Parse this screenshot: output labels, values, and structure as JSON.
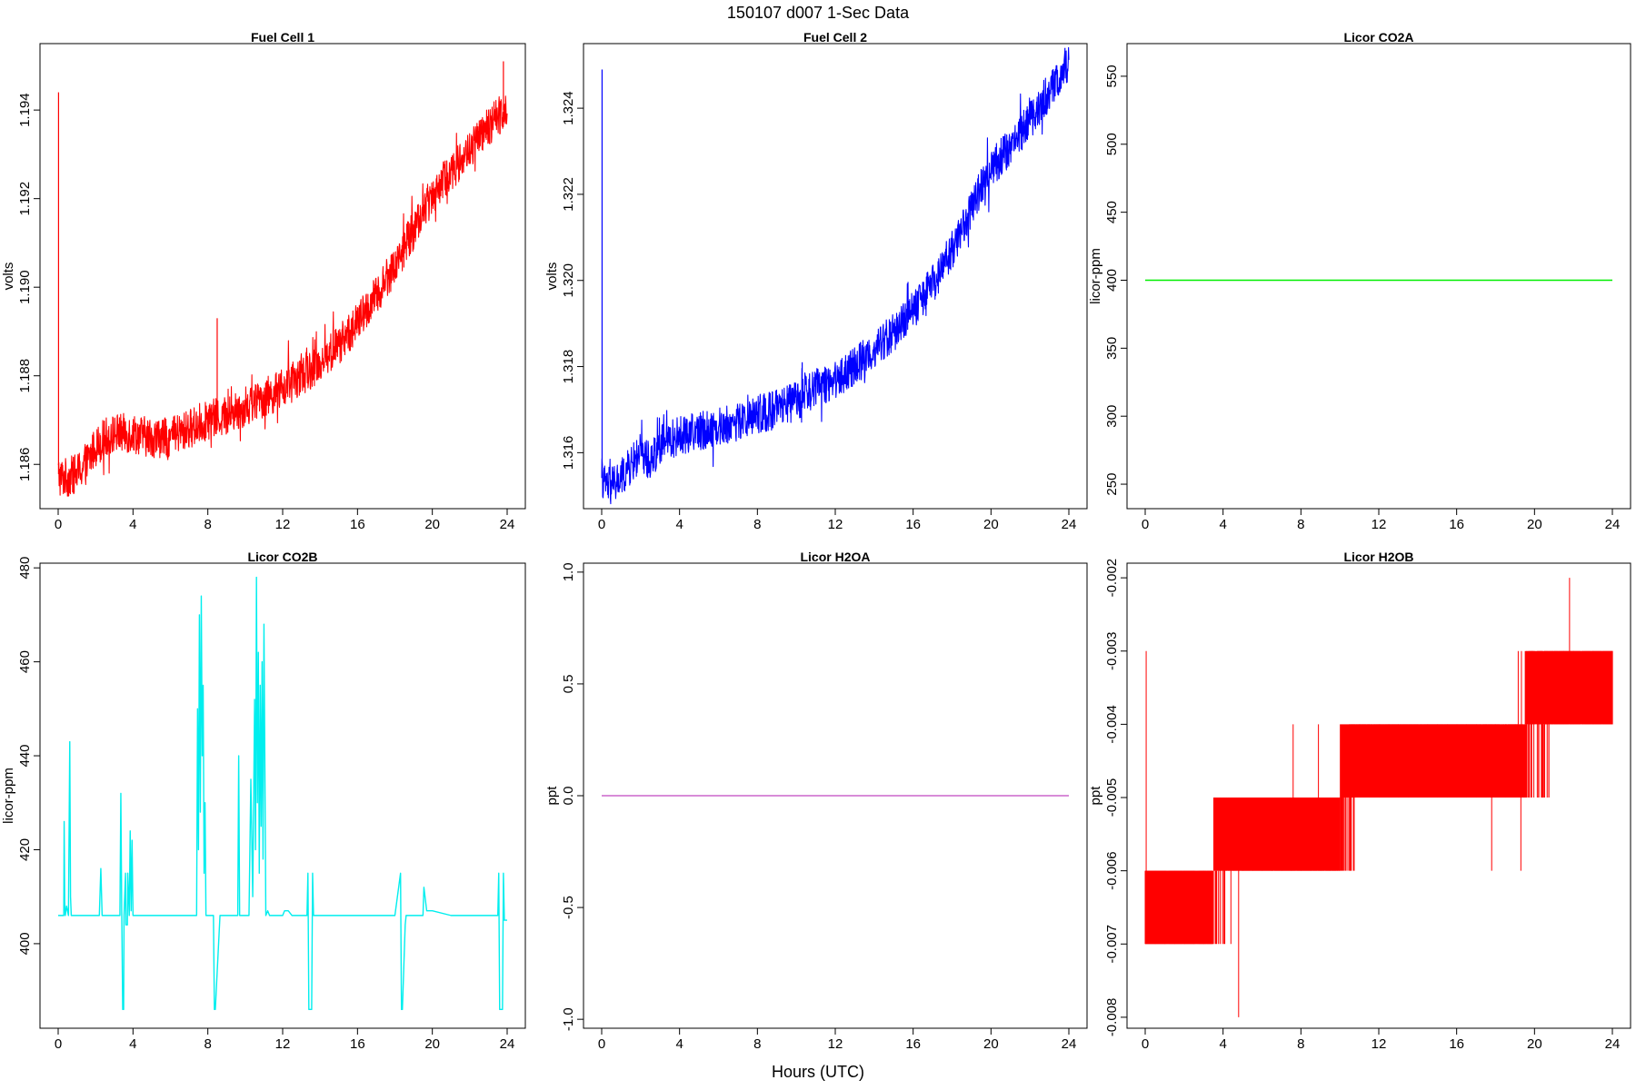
{
  "figure": {
    "title": "150107   d007   1-Sec Data",
    "xlabel": "Hours (UTC)"
  },
  "chart_data": [
    {
      "type": "line",
      "title": "Fuel Cell 1",
      "ylabel": "volts",
      "xlim": [
        0,
        24
      ],
      "ylim": [
        1.185,
        1.1955
      ],
      "xticks": [
        0,
        4,
        8,
        12,
        16,
        20,
        24
      ],
      "yticks": [
        1.186,
        1.188,
        1.19,
        1.192,
        1.194
      ],
      "ytick_labels": [
        "1.186",
        "1.188",
        "1.190",
        "1.192",
        "1.194"
      ],
      "color": "#ff0000",
      "noise": 0.00045,
      "spikes": [
        [
          0.02,
          1.1944
        ],
        [
          8.5,
          1.1893
        ],
        [
          19.5,
          1.1916
        ],
        [
          23.8,
          1.1951
        ]
      ],
      "series": [
        {
          "x": [
            0,
            0.1,
            0.5,
            1,
            1.5,
            2,
            2.5,
            3,
            4,
            5,
            6,
            7,
            8,
            9,
            10,
            11,
            12,
            13,
            14,
            15,
            16,
            17,
            18,
            19,
            20,
            21,
            22,
            23,
            24
          ],
          "y": [
            1.1858,
            1.1857,
            1.1857,
            1.1858,
            1.186,
            1.1864,
            1.1866,
            1.1867,
            1.1867,
            1.1866,
            1.1866,
            1.1868,
            1.187,
            1.1871,
            1.1873,
            1.1875,
            1.1877,
            1.188,
            1.1883,
            1.1887,
            1.1892,
            1.1898,
            1.1905,
            1.1913,
            1.1921,
            1.1926,
            1.1931,
            1.1936,
            1.1941
          ]
        }
      ]
    },
    {
      "type": "line",
      "title": "Fuel Cell 2",
      "ylabel": "volts",
      "xlim": [
        0,
        24
      ],
      "ylim": [
        1.3147,
        1.3255
      ],
      "xticks": [
        0,
        4,
        8,
        12,
        16,
        20,
        24
      ],
      "yticks": [
        1.316,
        1.318,
        1.32,
        1.322,
        1.324
      ],
      "ytick_labels": [
        "1.316",
        "1.318",
        "1.320",
        "1.322",
        "1.324"
      ],
      "color": "#0000ff",
      "noise": 0.00045,
      "spikes": [
        [
          0.02,
          1.3249
        ],
        [
          10.3,
          1.3181
        ],
        [
          23.8,
          1.3254
        ]
      ],
      "series": [
        {
          "x": [
            0,
            0.1,
            0.5,
            1,
            1.5,
            2,
            2.5,
            3,
            4,
            5,
            6,
            7,
            8,
            9,
            10,
            11,
            12,
            13,
            14,
            15,
            16,
            17,
            18,
            19,
            20,
            21,
            22,
            23,
            24
          ],
          "y": [
            1.3155,
            1.3153,
            1.3152,
            1.3154,
            1.3157,
            1.316,
            1.3158,
            1.3162,
            1.3164,
            1.3165,
            1.3166,
            1.3167,
            1.3169,
            1.317,
            1.3172,
            1.3175,
            1.3177,
            1.318,
            1.3184,
            1.3188,
            1.3193,
            1.3199,
            1.3207,
            1.3217,
            1.3226,
            1.3231,
            1.3237,
            1.3244,
            1.325
          ]
        }
      ]
    },
    {
      "type": "line",
      "title": "Licor CO2A",
      "ylabel": "licor-ppm",
      "xlim": [
        0,
        24
      ],
      "ylim": [
        232,
        574
      ],
      "xticks": [
        0,
        4,
        8,
        12,
        16,
        20,
        24
      ],
      "yticks": [
        250,
        300,
        350,
        400,
        450,
        500,
        550
      ],
      "ytick_labels": [
        "250",
        "300",
        "350",
        "400",
        "450",
        "500",
        "550"
      ],
      "color": "#00ee00",
      "noise": 0,
      "spikes": [],
      "series": [
        {
          "x": [
            0,
            24
          ],
          "y": [
            400,
            400
          ]
        }
      ]
    },
    {
      "type": "line",
      "title": "Licor CO2B",
      "ylabel": "licor-ppm",
      "xlim": [
        0,
        24
      ],
      "ylim": [
        382,
        481
      ],
      "xticks": [
        0,
        4,
        8,
        12,
        16,
        20,
        24
      ],
      "yticks": [
        400,
        420,
        440,
        460,
        480
      ],
      "ytick_labels": [
        "400",
        "420",
        "440",
        "460",
        "480"
      ],
      "color": "#00eeee",
      "noise": 0,
      "spikes": [],
      "series": [
        {
          "x": [
            0,
            0.3,
            0.32,
            0.35,
            0.38,
            0.45,
            0.55,
            0.62,
            0.66,
            0.7,
            0.75,
            0.85,
            2.2,
            2.28,
            2.35,
            3.3,
            3.35,
            3.4,
            3.45,
            3.5,
            3.52,
            3.6,
            3.62,
            3.7,
            3.72,
            3.8,
            3.85,
            3.9,
            3.95,
            4.0,
            4.05,
            4.1,
            4.15,
            4.2,
            4.25,
            4.3,
            7.4,
            7.45,
            7.5,
            7.55,
            7.6,
            7.65,
            7.7,
            7.75,
            7.8,
            7.85,
            7.9,
            8.0,
            8.3,
            8.35,
            8.4,
            8.65,
            8.7,
            8.75,
            9.6,
            9.65,
            9.7,
            9.8,
            10.2,
            10.3,
            10.4,
            10.5,
            10.55,
            10.6,
            10.65,
            10.7,
            10.75,
            10.8,
            10.85,
            10.9,
            10.95,
            11.0,
            11.1,
            11.2,
            11.3,
            11.5,
            12.0,
            12.1,
            12.3,
            12.5,
            12.8,
            13.3,
            13.35,
            13.4,
            13.55,
            13.6,
            13.65,
            14.0,
            15.0,
            16.0,
            17.0,
            18.0,
            18.3,
            18.35,
            18.4,
            18.55,
            18.6,
            18.65,
            19.0,
            19.5,
            19.55,
            19.7,
            20.0,
            21.0,
            22.0,
            23.0,
            23.5,
            23.55,
            23.6,
            23.75,
            23.8,
            23.85,
            24.0
          ],
          "y": [
            406,
            406,
            426,
            409,
            406,
            408,
            406,
            443,
            410,
            406,
            406,
            406,
            406,
            416,
            406,
            406,
            432,
            406,
            386,
            386,
            406,
            415,
            404,
            404,
            415,
            406,
            424,
            407,
            422,
            406,
            406,
            406,
            406,
            406,
            406,
            406,
            406,
            450,
            420,
            470,
            428,
            474,
            440,
            455,
            415,
            430,
            406,
            406,
            406,
            386,
            386,
            406,
            406,
            406,
            406,
            440,
            406,
            406,
            406,
            435,
            410,
            452,
            420,
            478,
            430,
            462,
            415,
            455,
            425,
            460,
            418,
            468,
            406,
            407,
            406,
            406,
            406,
            407,
            407,
            406,
            406,
            406,
            415,
            386,
            386,
            415,
            406,
            406,
            406,
            406,
            406,
            406,
            415,
            386,
            386,
            404,
            406,
            406,
            406,
            406,
            412,
            407,
            407,
            406,
            406,
            406,
            406,
            415,
            386,
            386,
            415,
            405,
            405
          ]
        }
      ]
    },
    {
      "type": "line",
      "title": "Licor H2OA",
      "ylabel": "ppt",
      "xlim": [
        0,
        24
      ],
      "ylim": [
        -1.04,
        1.04
      ],
      "xticks": [
        0,
        4,
        8,
        12,
        16,
        20,
        24
      ],
      "yticks": [
        -1.0,
        -0.5,
        0.0,
        0.5,
        1.0
      ],
      "ytick_labels": [
        "-1.0",
        "-0.5",
        "0.0",
        "0.5",
        "1.0"
      ],
      "color": "#cc66cc",
      "noise": 0,
      "spikes": [],
      "series": [
        {
          "x": [
            0,
            24
          ],
          "y": [
            0,
            0
          ]
        }
      ]
    },
    {
      "type": "line",
      "title": "Licor H2OB",
      "ylabel": "ppt",
      "xlim": [
        0,
        24
      ],
      "ylim": [
        -0.00815,
        -0.0018
      ],
      "xticks": [
        0,
        4,
        8,
        12,
        16,
        20,
        24
      ],
      "yticks": [
        -0.008,
        -0.007,
        -0.006,
        -0.005,
        -0.004,
        -0.003,
        -0.002
      ],
      "ytick_labels": [
        "-0.008",
        "-0.007",
        "-0.006",
        "-0.005",
        "-0.004",
        "-0.003",
        "-0.002"
      ],
      "color": "#ff0000",
      "noise": 0,
      "spikes": [],
      "quantized": true,
      "quantum": 0.001,
      "step": 0.0005,
      "sparse_outliers": [
        [
          0.05,
          -0.003
        ],
        [
          4.8,
          -0.008
        ],
        [
          7.6,
          -0.004
        ],
        [
          8.9,
          -0.004
        ],
        [
          17.8,
          -0.006
        ],
        [
          19.3,
          -0.006
        ],
        [
          21.8,
          -0.002
        ]
      ],
      "series": [
        {
          "x": [
            0,
            1,
            2,
            3,
            4,
            5,
            6,
            7,
            8,
            9,
            10,
            11,
            12,
            13,
            14,
            15,
            16,
            17,
            18,
            19,
            20,
            21,
            22,
            23,
            24
          ],
          "y": [
            -0.0065,
            -0.0065,
            -0.0065,
            -0.0063,
            -0.006,
            -0.0058,
            -0.0056,
            -0.0055,
            -0.0054,
            -0.0053,
            -0.0051,
            -0.0049,
            -0.0048,
            -0.0047,
            -0.0046,
            -0.0045,
            -0.0044,
            -0.0043,
            -0.0042,
            -0.0041,
            -0.004,
            -0.0039,
            -0.0038,
            -0.0037,
            -0.0036
          ]
        }
      ]
    }
  ]
}
